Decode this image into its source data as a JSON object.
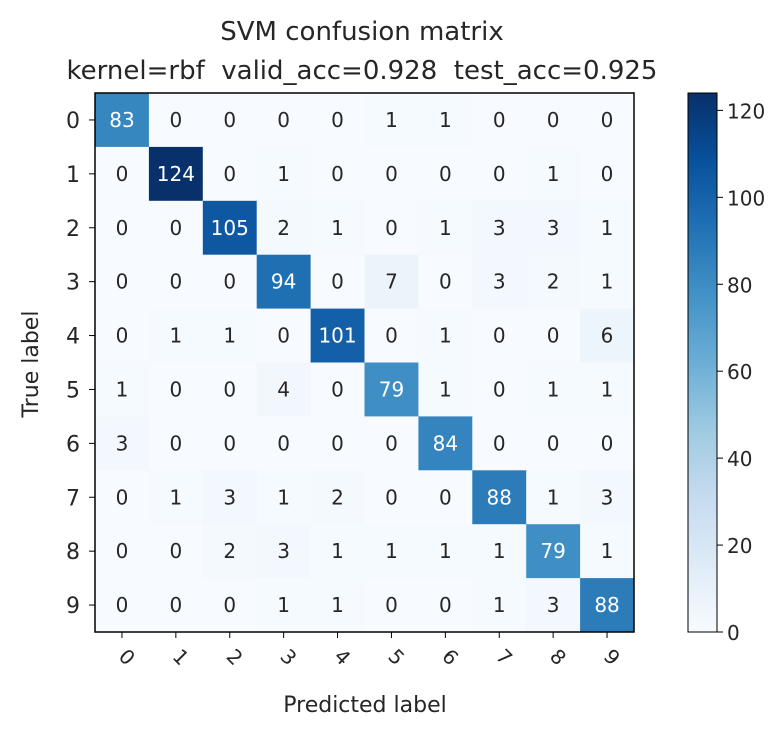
{
  "chart_data": {
    "type": "heatmap",
    "title": "SVM confusion matrix",
    "subtitle": "kernel=rbf  valid_acc=0.928  test_acc=0.925",
    "xlabel": "Predicted label",
    "ylabel": "True label",
    "x_tick_labels": [
      "0",
      "1",
      "2",
      "3",
      "4",
      "5",
      "6",
      "7",
      "8",
      "9"
    ],
    "y_tick_labels": [
      "0",
      "1",
      "2",
      "3",
      "4",
      "5",
      "6",
      "7",
      "8",
      "9"
    ],
    "matrix": [
      [
        83,
        0,
        0,
        0,
        0,
        1,
        1,
        0,
        0,
        0
      ],
      [
        0,
        124,
        0,
        1,
        0,
        0,
        0,
        0,
        1,
        0
      ],
      [
        0,
        0,
        105,
        2,
        1,
        0,
        1,
        3,
        3,
        1
      ],
      [
        0,
        0,
        0,
        94,
        0,
        7,
        0,
        3,
        2,
        1
      ],
      [
        0,
        1,
        1,
        0,
        101,
        0,
        1,
        0,
        0,
        6
      ],
      [
        1,
        0,
        0,
        4,
        0,
        79,
        1,
        0,
        1,
        1
      ],
      [
        3,
        0,
        0,
        0,
        0,
        0,
        84,
        0,
        0,
        0
      ],
      [
        0,
        1,
        3,
        1,
        2,
        0,
        0,
        88,
        1,
        3
      ],
      [
        0,
        0,
        2,
        3,
        1,
        1,
        1,
        1,
        79,
        1
      ],
      [
        0,
        0,
        0,
        1,
        1,
        0,
        0,
        1,
        3,
        88
      ]
    ],
    "colormap": "Blues",
    "colorbar": {
      "vmin": 0,
      "vmax": 124,
      "ticks": [
        0,
        20,
        40,
        60,
        80,
        100,
        120
      ]
    },
    "x_tick_rotation": 45,
    "text_color_dark_bg": "#ffffff",
    "text_color_light_bg": "#262626",
    "grid": false
  }
}
